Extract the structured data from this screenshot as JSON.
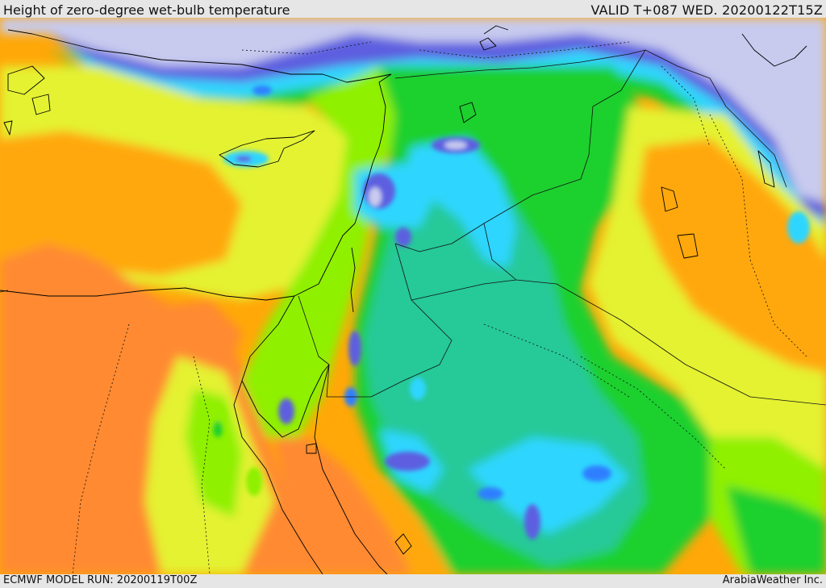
{
  "header": {
    "title": "Height of zero-degree wet-bulb temperature",
    "valid": "VALID T+087 WED. 20200122T15Z"
  },
  "footer": {
    "model_run": "ECMWF MODEL RUN: 20200119T00Z",
    "credit": "ArabiaWeather Inc."
  },
  "palette": {
    "lowest": "#c8cbee",
    "very_low": "#5d5fe0",
    "low": "#2f7fff",
    "low_mid": "#2ed6ff",
    "mid_low": "#28c998",
    "mid": "#1fd02f",
    "mid_high": "#8ff000",
    "high": "#e4f230",
    "higher": "#ffa808",
    "highest": "#ff8a30"
  },
  "layers": {
    "borders": "country-borders",
    "coastlines": "coastlines"
  }
}
